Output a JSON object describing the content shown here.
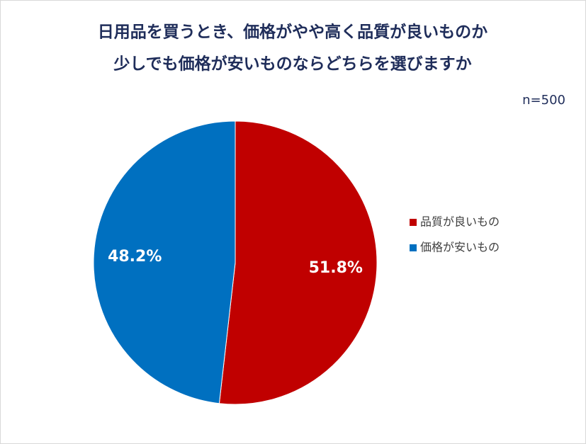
{
  "chart_data": {
    "type": "pie",
    "title": [
      "日用品を買うとき、価格がやや高く品質が良いものか",
      "少しでも価格が安いものならどちらを選びますか"
    ],
    "annotation": "n=500",
    "categories": [
      "品質が良いもの",
      "価格が安いもの"
    ],
    "values": [
      51.8,
      48.2
    ],
    "value_labels": [
      "51.8%",
      "48.2%"
    ],
    "colors": [
      "#c00000",
      "#0070c0"
    ],
    "legend": "right"
  }
}
